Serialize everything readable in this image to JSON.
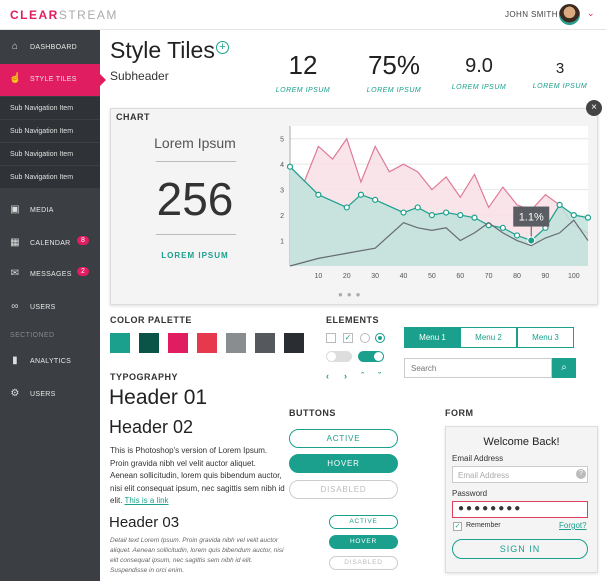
{
  "app": {
    "logo_primary": "CLEAR",
    "logo_secondary": "STREAM",
    "user_name": "JOHN SMITH",
    "accent": "#e11d62",
    "teal": "#1aa08c"
  },
  "sidebar": {
    "items": [
      {
        "label": "DASHBOARD",
        "icon": "bank-icon"
      },
      {
        "label": "STYLE TILES",
        "icon": "hand-icon",
        "active": true
      },
      {
        "label": "MEDIA",
        "icon": "image-icon"
      },
      {
        "label": "CALENDAR",
        "icon": "calendar-icon",
        "badge": "8"
      },
      {
        "label": "MESSAGES",
        "icon": "envelope-icon",
        "badge": "2"
      },
      {
        "label": "USERS",
        "icon": "glasses-icon"
      },
      {
        "label": "ANALYTICS",
        "icon": "bar-chart-icon"
      },
      {
        "label": "USERS",
        "icon": "gear-icon"
      }
    ],
    "sub_items": [
      "Sub Navigation Item",
      "Sub Navigation Item",
      "Sub Navigation Item",
      "Sub Navigation Item"
    ],
    "section_label": "SECTIONED"
  },
  "header": {
    "title": "Style Tiles",
    "subheader": "Subheader"
  },
  "stats": [
    {
      "value": "12",
      "label": "LOREM IPSUM"
    },
    {
      "value": "75%",
      "label": "LOREM IPSUM"
    },
    {
      "value": "9.0",
      "label": "LOREM IPSUM"
    },
    {
      "value": "3",
      "label": "LOREM IPSUM"
    }
  ],
  "chart_panel": {
    "label": "CHART",
    "kpi_title": "Lorem Ipsum",
    "kpi_value": "256",
    "kpi_label": "LOREM IPSUM"
  },
  "chart_data": {
    "type": "area",
    "title": "",
    "xlabel": "",
    "ylabel": "",
    "xlim": [
      0,
      105
    ],
    "ylim": [
      0,
      5.5
    ],
    "xticks": [
      10,
      20,
      30,
      40,
      50,
      60,
      70,
      80,
      90,
      100
    ],
    "yticks": [
      1,
      2,
      3,
      4,
      5
    ],
    "series": [
      {
        "color": "#e07a97",
        "fill": "#f8dfe6",
        "x": [
          0,
          5,
          10,
          15,
          20,
          25,
          30,
          35,
          40,
          45,
          50,
          55,
          60,
          65,
          70,
          75,
          80,
          85,
          90,
          95,
          100,
          105
        ],
        "y": [
          3.9,
          3.3,
          4.7,
          4.2,
          5.0,
          3.3,
          4.7,
          3.7,
          4.0,
          3.7,
          3.0,
          3.5,
          2.7,
          3.6,
          2.3,
          3.1,
          2.4,
          2.2,
          2.8,
          2.4,
          1.6,
          1.3
        ]
      },
      {
        "color": "#1aa08c",
        "fill": "#bfe3dc",
        "markers": true,
        "x": [
          0,
          10,
          20,
          25,
          30,
          40,
          45,
          50,
          55,
          60,
          65,
          70,
          75,
          80,
          85,
          90,
          95,
          100,
          105
        ],
        "y": [
          3.9,
          2.8,
          2.3,
          2.8,
          2.6,
          2.1,
          2.3,
          2.0,
          2.1,
          2.0,
          1.9,
          1.6,
          1.5,
          1.2,
          1.0,
          1.5,
          2.4,
          2.0,
          1.9
        ]
      },
      {
        "color": "#666b70",
        "x": [
          0,
          10,
          20,
          30,
          40,
          45,
          50,
          55,
          60,
          65,
          70,
          75,
          80,
          85,
          90,
          95,
          100,
          105
        ],
        "y": [
          0.0,
          0.3,
          0.5,
          0.7,
          1.7,
          1.5,
          1.4,
          1.5,
          1.0,
          1.3,
          1.7,
          1.3,
          1.0,
          0.8,
          1.1,
          1.3,
          1.8,
          1.0
        ]
      }
    ],
    "annotation": {
      "x": 85,
      "y": 1.0,
      "text": "1.1%"
    }
  },
  "palette": {
    "label": "COLOR PALETTE",
    "colors": [
      "#1aa08c",
      "#0a5447",
      "#e11d62",
      "#e63a4c",
      "#8a8d90",
      "#55585c",
      "#2a2d31"
    ]
  },
  "elements": {
    "label": "ELEMENTS",
    "menu_tabs": [
      "Menu 1",
      "Menu 2",
      "Menu 3"
    ],
    "search_placeholder": "Search"
  },
  "typography": {
    "label": "TYPOGRAPHY",
    "h1": "Header 01",
    "h2": "Header 02",
    "body": "This is Photoshop's version  of Lorem Ipsum. Proin gravida nibh vel velit auctor aliquet. Aenean sollicitudin, lorem quis bibendum auctor, nisi elit consequat ipsum, nec sagittis sem nibh id elit.",
    "link": "This is a link",
    "h3": "Header 03",
    "small": "Detail text Lorem Ipsum. Proin gravida nibh vel velit auctor aliquet. Aenean sollicitudin, lorem quis  bibendum auctor, nisi elit consequat ipsum, nec sagittis sem nibh id elit. Suspendisse in orci enim."
  },
  "buttons": {
    "label": "BUTTONS",
    "active": "ACTIVE",
    "hover": "HOVER",
    "disabled": "DISABLED"
  },
  "form": {
    "label": "FORM",
    "welcome": "Welcome Back!",
    "email_label": "Email Address",
    "email_placeholder": "Email Address",
    "password_label": "Password",
    "password_value": "●●●●●●●●",
    "remember": "Remember",
    "forgot": "Forgot?",
    "submit": "SIGN IN"
  }
}
